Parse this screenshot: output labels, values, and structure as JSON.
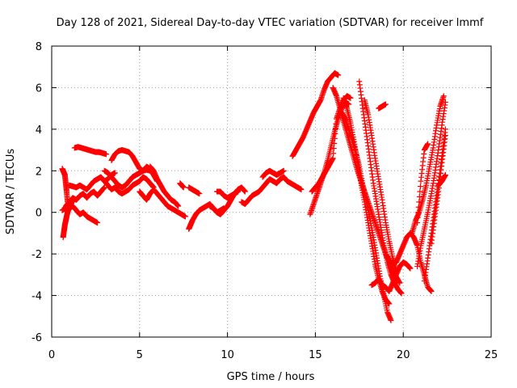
{
  "chart_data": {
    "type": "scatter",
    "title": "Day 128 of 2021, Sidereal Day-to-day VTEC variation (SDTVAR) for receiver lmmf",
    "xlabel": "GPS time / hours",
    "ylabel": "SDTVAR / TECUs",
    "xlim": [
      0,
      25
    ],
    "ylim": [
      -6,
      8
    ],
    "xticks": [
      0,
      5,
      10,
      15,
      20,
      25
    ],
    "yticks": [
      -6,
      -4,
      -2,
      0,
      2,
      4,
      6,
      8
    ],
    "xtick_labels": [
      "0",
      "5",
      "10",
      "15",
      "20",
      "25"
    ],
    "ytick_labels": [
      "-6",
      "-4",
      "-2",
      "0",
      "2",
      "4",
      "6",
      "8"
    ],
    "grid": true,
    "marker": "+",
    "color": "#ff0000",
    "series": [
      {
        "x": [
          0.6,
          0.65,
          0.7,
          0.75,
          0.8,
          0.85,
          0.9
        ],
        "y": [
          2.1,
          2.0,
          1.9,
          1.8,
          1.4,
          1.0,
          0.5
        ]
      },
      {
        "x": [
          0.65,
          0.7,
          0.75,
          0.8,
          0.85,
          0.9,
          1.0,
          1.1,
          1.2
        ],
        "y": [
          -1.2,
          -0.9,
          -0.6,
          -0.4,
          -0.2,
          0.0,
          0.2,
          0.4,
          0.6
        ]
      },
      {
        "x": [
          0.6,
          0.8,
          1.0,
          1.2,
          1.4,
          1.6,
          1.8,
          2.0,
          2.2,
          2.4,
          2.6
        ],
        "y": [
          0.1,
          0.2,
          0.2,
          0.3,
          0.1,
          -0.1,
          0.0,
          -0.2,
          -0.3,
          -0.4,
          -0.5
        ]
      },
      {
        "x": [
          1.3,
          1.5,
          1.7,
          1.9,
          2.1,
          2.3,
          2.5,
          2.7,
          2.9,
          3.1
        ],
        "y": [
          3.1,
          3.15,
          3.1,
          3.05,
          3.0,
          2.95,
          2.9,
          2.9,
          2.85,
          2.8
        ]
      },
      {
        "x": [
          1.0,
          1.2,
          1.4,
          1.6,
          1.8,
          2.0,
          2.2,
          2.4,
          2.6,
          2.8,
          3.0,
          3.2,
          3.4,
          3.6
        ],
        "y": [
          1.3,
          1.25,
          1.2,
          1.3,
          1.2,
          1.1,
          1.3,
          1.5,
          1.6,
          1.7,
          1.5,
          1.6,
          1.8,
          1.9
        ]
      },
      {
        "x": [
          0.8,
          1.0,
          1.2,
          1.4,
          1.6,
          1.8,
          2.0,
          2.2,
          2.4,
          2.6,
          2.8,
          3.0
        ],
        "y": [
          0.3,
          0.5,
          0.7,
          0.6,
          0.8,
          0.9,
          0.7,
          0.9,
          1.0,
          0.8,
          1.0,
          1.2
        ]
      },
      {
        "x": [
          3.0,
          3.2,
          3.4,
          3.6,
          3.8,
          4.0,
          4.2,
          4.4,
          4.6,
          4.8,
          5.0,
          5.2,
          5.4,
          5.6,
          5.8
        ],
        "y": [
          1.5,
          1.3,
          1.1,
          1.2,
          1.0,
          0.9,
          1.0,
          1.1,
          1.3,
          1.4,
          1.5,
          1.7,
          1.6,
          1.4,
          1.2
        ]
      },
      {
        "x": [
          3.4,
          3.6,
          3.8,
          4.0,
          4.2,
          4.4,
          4.6,
          4.8,
          5.0,
          5.2,
          5.4,
          5.6
        ],
        "y": [
          2.5,
          2.8,
          2.95,
          3.0,
          2.95,
          2.9,
          2.7,
          2.4,
          2.1,
          2.0,
          2.05,
          2.0
        ]
      },
      {
        "x": [
          3.0,
          3.2,
          3.4,
          3.6,
          3.8,
          4.0,
          4.2,
          4.4,
          4.6,
          4.8,
          5.0,
          5.2,
          5.4,
          5.6,
          5.8,
          6.0
        ],
        "y": [
          2.0,
          1.9,
          1.7,
          1.5,
          1.3,
          1.2,
          1.3,
          1.5,
          1.7,
          1.8,
          1.9,
          2.0,
          2.2,
          2.1,
          1.8,
          1.5
        ]
      },
      {
        "x": [
          5.0,
          5.2,
          5.4,
          5.6,
          5.8,
          6.0,
          6.2,
          6.4,
          6.6,
          6.8,
          7.0,
          7.2,
          7.4,
          7.6
        ],
        "y": [
          1.0,
          0.8,
          0.6,
          0.9,
          1.1,
          0.9,
          0.7,
          0.5,
          0.3,
          0.2,
          0.1,
          0.0,
          -0.1,
          -0.2
        ]
      },
      {
        "x": [
          5.6,
          5.8,
          6.0,
          6.2,
          6.4,
          6.6,
          6.8,
          7.0,
          7.2
        ],
        "y": [
          2.2,
          2.0,
          1.6,
          1.3,
          1.0,
          0.8,
          0.6,
          0.5,
          0.3
        ]
      },
      {
        "x": [
          7.3,
          7.4,
          7.5
        ],
        "y": [
          1.4,
          1.3,
          1.2
        ]
      },
      {
        "x": [
          7.8,
          7.9,
          8.0,
          8.2,
          8.4,
          8.6,
          8.8,
          9.0,
          9.2,
          9.4,
          9.6,
          9.8
        ],
        "y": [
          -0.8,
          -0.6,
          -0.4,
          -0.1,
          0.1,
          0.2,
          0.3,
          0.4,
          0.2,
          0.0,
          0.1,
          0.2
        ]
      },
      {
        "x": [
          7.8,
          8.0,
          8.2,
          8.4
        ],
        "y": [
          1.2,
          1.1,
          1.0,
          0.9
        ]
      },
      {
        "x": [
          9.0,
          9.2,
          9.4,
          9.6,
          9.8,
          10.0,
          10.2,
          10.4,
          10.6,
          10.8,
          11.0
        ],
        "y": [
          0.3,
          0.2,
          0.0,
          -0.1,
          0.1,
          0.3,
          0.6,
          0.9,
          1.1,
          1.2,
          1.0
        ]
      },
      {
        "x": [
          9.4,
          9.6,
          9.8,
          10.0,
          10.2,
          10.4,
          10.6
        ],
        "y": [
          1.0,
          1.0,
          0.8,
          0.7,
          0.8,
          0.9,
          1.0
        ]
      },
      {
        "x": [
          10.8,
          11.0,
          11.2,
          11.4,
          11.6,
          11.8,
          12.0,
          12.2,
          12.4,
          12.6,
          12.8,
          13.0,
          13.2,
          13.4,
          13.6,
          13.8,
          14.0,
          14.2
        ],
        "y": [
          0.5,
          0.4,
          0.6,
          0.8,
          0.9,
          1.0,
          1.2,
          1.4,
          1.6,
          1.5,
          1.4,
          1.6,
          1.7,
          1.5,
          1.4,
          1.3,
          1.2,
          1.1
        ]
      },
      {
        "x": [
          12.0,
          12.2,
          12.4,
          12.6,
          12.8,
          13.0,
          13.2
        ],
        "y": [
          1.7,
          1.9,
          2.0,
          1.9,
          1.8,
          1.9,
          2.0
        ]
      },
      {
        "x": [
          13.7,
          13.9,
          14.1,
          14.3,
          14.5,
          14.7,
          14.9,
          15.1,
          15.3,
          15.5,
          15.7,
          15.9,
          16.1,
          16.3
        ],
        "y": [
          2.7,
          3.0,
          3.3,
          3.6,
          4.0,
          4.4,
          4.8,
          5.1,
          5.4,
          5.9,
          6.3,
          6.5,
          6.7,
          6.6
        ]
      },
      {
        "x": [
          14.7,
          14.9,
          15.1,
          15.3,
          15.5,
          15.7,
          15.9,
          16.1,
          16.3,
          16.5,
          16.7,
          16.9
        ],
        "y": [
          -0.1,
          0.4,
          0.9,
          1.4,
          1.9,
          2.5,
          3.2,
          3.9,
          4.5,
          5.0,
          5.3,
          5.2
        ]
      },
      {
        "x": [
          14.8,
          15.0,
          15.2,
          15.4,
          15.6,
          15.8,
          16.0,
          16.2,
          16.4,
          16.6,
          16.8,
          17.0
        ],
        "y": [
          1.0,
          1.2,
          1.4,
          1.7,
          2.0,
          2.3,
          2.6,
          4.5,
          5.0,
          5.4,
          5.6,
          5.5
        ]
      },
      {
        "x": [
          16.0,
          16.2,
          16.4,
          16.6,
          16.8,
          17.0,
          17.2,
          17.4,
          17.6,
          17.8,
          18.0,
          18.2,
          18.4,
          18.6,
          18.8,
          19.0,
          19.2,
          19.4,
          19.6,
          19.8
        ],
        "y": [
          6.0,
          5.6,
          5.0,
          4.4,
          3.8,
          3.2,
          2.6,
          2.0,
          1.5,
          1.0,
          0.5,
          0.0,
          -0.5,
          -1.0,
          -1.5,
          -2.0,
          -2.4,
          -2.8,
          -3.1,
          -3.4
        ]
      },
      {
        "x": [
          16.6,
          16.8,
          17.0,
          17.2,
          17.4,
          17.6,
          17.8,
          18.0,
          18.2,
          18.4,
          18.6,
          18.8,
          19.0,
          19.2
        ],
        "y": [
          5.5,
          5.0,
          4.3,
          3.4,
          2.4,
          1.4,
          0.5,
          -0.5,
          -1.5,
          -2.5,
          -3.2,
          -3.8,
          -4.2,
          -4.4
        ]
      },
      {
        "x": [
          16.5,
          16.7,
          16.9,
          17.1,
          17.3,
          17.5,
          17.7,
          17.9,
          18.1,
          18.3,
          18.5,
          18.7,
          18.9,
          19.1,
          19.3
        ],
        "y": [
          4.8,
          4.5,
          4.0,
          3.5,
          2.9,
          2.2,
          1.3,
          0.5,
          -0.3,
          -1.2,
          -2.2,
          -3.2,
          -4.0,
          -4.8,
          -5.2
        ]
      },
      {
        "x": [
          17.5,
          17.7,
          17.9,
          18.1,
          18.3,
          18.5,
          18.7,
          18.9,
          19.1,
          19.3,
          19.5,
          19.7,
          19.9
        ],
        "y": [
          6.3,
          5.0,
          3.8,
          2.6,
          1.4,
          0.4,
          -0.6,
          -1.6,
          -2.4,
          -3.0,
          -3.4,
          -3.7,
          -3.9
        ]
      },
      {
        "x": [
          17.8,
          18.0,
          18.2,
          18.4,
          18.6,
          18.8,
          19.0,
          19.2,
          19.4,
          19.6
        ],
        "y": [
          5.4,
          4.7,
          3.7,
          2.6,
          1.6,
          0.6,
          -0.5,
          -1.4,
          -2.2,
          -2.8
        ]
      },
      {
        "x": [
          18.2,
          18.4,
          18.6,
          18.8,
          19.0,
          19.2,
          19.4,
          19.6,
          19.8,
          20.0,
          20.2,
          20.4
        ],
        "y": [
          -3.5,
          -3.4,
          -3.2,
          -3.5,
          -3.6,
          -3.8,
          -3.4,
          -3.0,
          -2.6,
          -2.4,
          -2.5,
          -2.7
        ]
      },
      {
        "x": [
          19.0,
          19.2,
          19.4,
          19.6,
          19.8,
          20.0,
          20.2,
          20.4,
          20.6,
          20.8,
          21.0,
          21.2,
          21.4,
          21.6
        ],
        "y": [
          -2.0,
          -2.3,
          -2.5,
          -2.4,
          -2.0,
          -1.6,
          -1.2,
          -1.0,
          -1.2,
          -1.6,
          -2.4,
          -3.0,
          -3.6,
          -3.8
        ]
      },
      {
        "x": [
          20.5,
          20.7,
          20.9,
          21.1,
          21.3,
          21.5,
          21.7,
          21.9,
          22.1,
          22.3
        ],
        "y": [
          -1.0,
          -0.4,
          0.0,
          0.6,
          1.3,
          2.2,
          3.1,
          4.2,
          5.1,
          5.6
        ]
      },
      {
        "x": [
          20.8,
          21.0,
          21.2,
          21.4,
          21.6,
          21.8,
          22.0,
          22.2,
          22.4
        ],
        "y": [
          -2.6,
          -1.6,
          -0.8,
          0.0,
          0.9,
          1.9,
          3.0,
          4.2,
          5.3
        ]
      },
      {
        "x": [
          21.2,
          21.4,
          21.6,
          21.8,
          22.0,
          22.2,
          22.4
        ],
        "y": [
          -3.3,
          -2.2,
          -1.0,
          0.2,
          1.4,
          2.7,
          4.0
        ]
      },
      {
        "x": [
          21.6,
          21.8,
          22.0,
          22.2,
          22.4
        ],
        "y": [
          -1.5,
          -0.2,
          1.0,
          2.4,
          3.7
        ]
      },
      {
        "x": [
          20.8,
          21.0,
          21.2,
          21.4
        ],
        "y": [
          -0.5,
          1.5,
          3.0,
          3.3
        ]
      },
      {
        "x": [
          22.0,
          22.2,
          22.4
        ],
        "y": [
          1.3,
          1.5,
          1.8
        ]
      },
      {
        "x": [
          18.6,
          18.8,
          19.0
        ],
        "y": [
          5.0,
          5.1,
          5.2
        ]
      }
    ]
  }
}
